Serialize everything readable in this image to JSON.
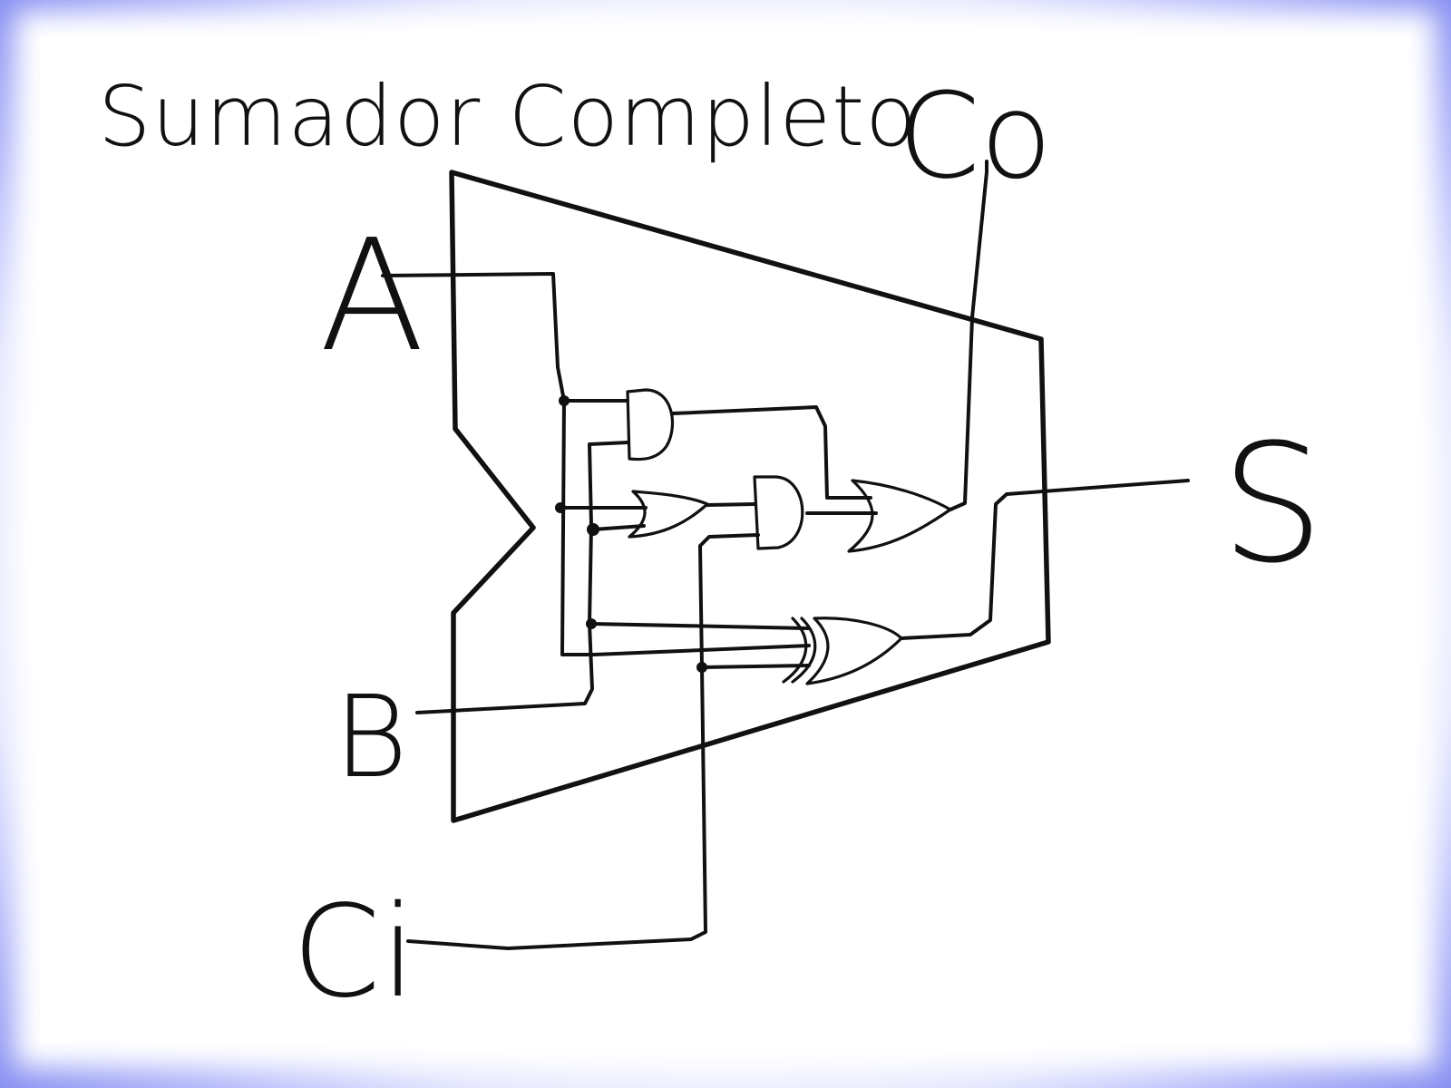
{
  "diagram": {
    "title": "Sumador Completo",
    "labels": {
      "input_a": "A",
      "input_b": "B",
      "input_carry": "Ci",
      "output_carry": "Co",
      "output_sum": "S"
    },
    "colors": {
      "ink": "#111111",
      "paper": "#ffffff",
      "border_glow": "#8e95f3"
    }
  }
}
